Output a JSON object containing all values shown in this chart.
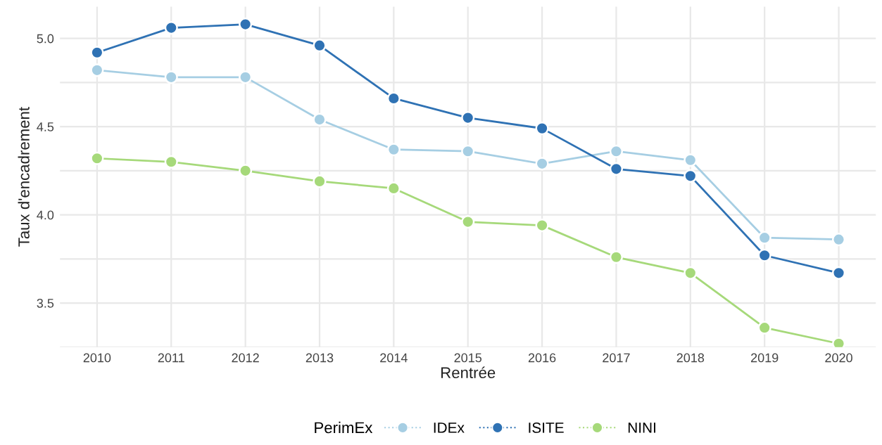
{
  "chart_data": {
    "type": "line",
    "xlabel": "Rentrée",
    "ylabel": "Taux d'encadrement",
    "legend_title": "PerimEx",
    "categories": [
      "2010",
      "2011",
      "2012",
      "2013",
      "2014",
      "2015",
      "2016",
      "2017",
      "2018",
      "2019",
      "2020"
    ],
    "series": [
      {
        "name": "IDEx",
        "color": "#a6cee3",
        "values": [
          4.82,
          4.78,
          4.78,
          4.54,
          4.37,
          4.36,
          4.29,
          4.36,
          4.31,
          3.87,
          3.86
        ]
      },
      {
        "name": "ISITE",
        "color": "#2f72b4",
        "values": [
          4.92,
          5.06,
          5.08,
          4.96,
          4.66,
          4.55,
          4.49,
          4.26,
          4.22,
          3.77,
          3.67
        ]
      },
      {
        "name": "NINI",
        "color": "#a6d97a",
        "values": [
          4.32,
          4.3,
          4.25,
          4.19,
          4.15,
          3.96,
          3.94,
          3.76,
          3.67,
          3.36,
          3.27
        ]
      }
    ],
    "ylim": [
      3.25,
      5.18
    ],
    "yticks": [
      {
        "value": 3.25,
        "label": null
      },
      3.5,
      {
        "value": 3.75,
        "label": null
      },
      {
        "value": 4.0,
        "label": "4.0"
      },
      {
        "value": 4.25,
        "label": null
      },
      4.5,
      {
        "value": 4.75,
        "label": null
      },
      {
        "value": 5.0,
        "label": "5.0"
      }
    ],
    "grid": true,
    "legend": "bottom",
    "marker": "circle",
    "line_style": "solid"
  }
}
